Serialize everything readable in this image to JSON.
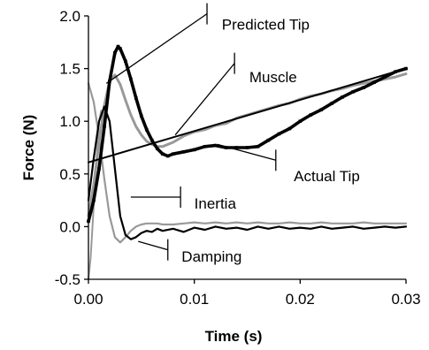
{
  "chart_data": {
    "type": "line",
    "title": "",
    "xlabel": "Time (s)",
    "ylabel": "Force (N)",
    "xlim": [
      0,
      0.03
    ],
    "ylim": [
      -0.5,
      2.0
    ],
    "xticks": [
      "0.00",
      "0.01",
      "0.02",
      "0.03"
    ],
    "yticks": [
      "-0.5",
      "0.0",
      "0.5",
      "1.0",
      "1.5",
      "2.0"
    ],
    "grid": false,
    "legend": "none",
    "series": [
      {
        "name": "Actual Tip",
        "color": "#000000",
        "style": "thick-markers",
        "x": [
          0,
          0.0005,
          0.001,
          0.0015,
          0.002,
          0.0025,
          0.0028,
          0.003,
          0.0035,
          0.004,
          0.0045,
          0.005,
          0.0055,
          0.006,
          0.0065,
          0.007,
          0.0075,
          0.008,
          0.009,
          0.01,
          0.011,
          0.012,
          0.013,
          0.014,
          0.015,
          0.016,
          0.017,
          0.018,
          0.019,
          0.02,
          0.021,
          0.022,
          0.023,
          0.024,
          0.025,
          0.026,
          0.027,
          0.028,
          0.029,
          0.03
        ],
        "y": [
          0.05,
          0.25,
          0.55,
          0.95,
          1.38,
          1.65,
          1.71,
          1.69,
          1.57,
          1.4,
          1.22,
          1.05,
          0.92,
          0.82,
          0.74,
          0.69,
          0.67,
          0.69,
          0.71,
          0.73,
          0.76,
          0.77,
          0.75,
          0.75,
          0.75,
          0.76,
          0.82,
          0.88,
          0.93,
          1.0,
          1.06,
          1.11,
          1.17,
          1.23,
          1.28,
          1.32,
          1.37,
          1.42,
          1.47,
          1.5
        ]
      },
      {
        "name": "Predicted Tip",
        "color": "#999999",
        "style": "thick",
        "x": [
          0,
          0.0005,
          0.001,
          0.0015,
          0.002,
          0.0025,
          0.003,
          0.0035,
          0.004,
          0.0045,
          0.005,
          0.0055,
          0.006,
          0.0065,
          0.007,
          0.008,
          0.009,
          0.01,
          0.011,
          0.012,
          0.013,
          0.014,
          0.015,
          0.016,
          0.017,
          0.018,
          0.019,
          0.02,
          0.021,
          0.022,
          0.023,
          0.024,
          0.025,
          0.026,
          0.027,
          0.028,
          0.029,
          0.03
        ],
        "y": [
          0.1,
          0.4,
          0.8,
          1.15,
          1.38,
          1.44,
          1.35,
          1.2,
          1.06,
          0.95,
          0.87,
          0.81,
          0.78,
          0.76,
          0.76,
          0.8,
          0.86,
          0.9,
          0.92,
          0.96,
          0.98,
          1.03,
          1.06,
          1.09,
          1.12,
          1.15,
          1.17,
          1.21,
          1.24,
          1.26,
          1.29,
          1.31,
          1.34,
          1.36,
          1.38,
          1.4,
          1.42,
          1.45
        ]
      },
      {
        "name": "Muscle",
        "color": "#000000",
        "style": "thin",
        "x": [
          0,
          0.03
        ],
        "y": [
          0.61,
          1.5
        ]
      },
      {
        "name": "Inertia",
        "color": "#000000",
        "style": "medium",
        "x": [
          0,
          0.0005,
          0.001,
          0.0015,
          0.002,
          0.0025,
          0.003,
          0.0035,
          0.004,
          0.0045,
          0.005,
          0.0055,
          0.006,
          0.0065,
          0.007,
          0.008,
          0.009,
          0.01,
          0.011,
          0.012,
          0.013,
          0.014,
          0.015,
          0.016,
          0.017,
          0.018,
          0.019,
          0.02,
          0.021,
          0.022,
          0.023,
          0.024,
          0.025,
          0.026,
          0.027,
          0.028,
          0.029,
          0.03
        ],
        "y": [
          0.25,
          0.65,
          1.0,
          1.14,
          1.0,
          0.55,
          0.1,
          -0.08,
          -0.12,
          -0.1,
          -0.06,
          -0.04,
          -0.05,
          -0.02,
          -0.04,
          -0.02,
          -0.05,
          -0.01,
          -0.03,
          0.0,
          -0.02,
          -0.01,
          -0.03,
          0.0,
          -0.02,
          0.0,
          -0.02,
          -0.01,
          -0.02,
          0.0,
          -0.02,
          -0.01,
          0.0,
          -0.02,
          -0.01,
          0.0,
          -0.01,
          0.0
        ]
      },
      {
        "name": "Damping",
        "color": "#999999",
        "style": "medium",
        "x": [
          0,
          0.0005,
          0.001,
          0.0015,
          0.002,
          0.0025,
          0.003,
          0.0035,
          0.004,
          0.0045,
          0.005,
          0.0055,
          0.006,
          0.0065,
          0.007,
          0.008,
          0.009,
          0.01,
          0.011,
          0.012,
          0.013,
          0.014,
          0.015,
          0.016,
          0.017,
          0.018,
          0.019,
          0.02,
          0.021,
          0.022,
          0.023,
          0.024,
          0.025,
          0.026,
          0.027,
          0.028,
          0.029,
          0.03
        ],
        "y": [
          1.36,
          1.18,
          0.85,
          0.45,
          0.1,
          -0.1,
          -0.15,
          -0.1,
          -0.04,
          0.0,
          0.02,
          0.03,
          0.03,
          0.03,
          0.02,
          0.02,
          0.03,
          0.04,
          0.03,
          0.04,
          0.03,
          0.04,
          0.03,
          0.04,
          0.03,
          0.03,
          0.04,
          0.03,
          0.03,
          0.04,
          0.03,
          0.03,
          0.03,
          0.04,
          0.03,
          0.03,
          0.03,
          0.03
        ]
      },
      {
        "name": "",
        "color": "#999999",
        "style": "thin",
        "x": [
          0,
          0.0002,
          0.0005,
          0.0008,
          0.001,
          0.0012
        ],
        "y": [
          -0.5,
          -0.3,
          0.2,
          0.7,
          1.0,
          1.1
        ]
      }
    ],
    "annotations": [
      {
        "label": "Predicted Tip",
        "tip": [
          0.0017,
          1.36
        ],
        "corner": [
          0.0112,
          2.02
        ],
        "text": [
          0.0126,
          1.92
        ]
      },
      {
        "label": "Muscle",
        "tip": [
          0.0082,
          0.87
        ],
        "corner": [
          0.0138,
          1.55
        ],
        "text": [
          0.0152,
          1.42
        ]
      },
      {
        "label": "Actual Tip",
        "tip": [
          0.0122,
          0.78
        ],
        "corner": [
          0.0177,
          0.63
        ],
        "text": [
          0.0194,
          0.48
        ]
      },
      {
        "label": "Inertia",
        "tip": [
          0.004,
          0.28
        ],
        "corner": [
          0.0087,
          0.28
        ],
        "text": [
          0.01,
          0.22
        ]
      },
      {
        "label": "Damping",
        "tip": [
          0.0047,
          -0.14
        ],
        "corner": [
          0.0075,
          -0.22
        ],
        "text": [
          0.0088,
          -0.28
        ]
      }
    ]
  }
}
